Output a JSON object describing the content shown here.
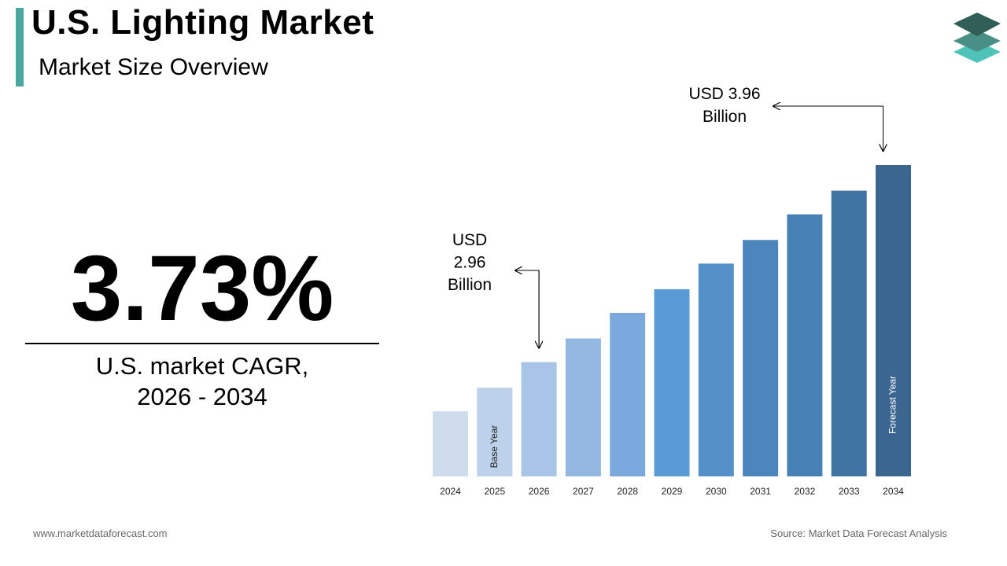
{
  "header": {
    "title": "U.S. Lighting Market",
    "subtitle": "Market Size Overview"
  },
  "kpi": {
    "value": "3.73%",
    "caption_line1": "U.S. market CAGR,",
    "caption_line2": "2026 - 2034"
  },
  "footer": {
    "website": "www.marketdataforecast.com",
    "source": "Source: Market Data Forecast Analysis"
  },
  "colors": {
    "accent": "#4aa89f",
    "logo_dark": "#2f5f57",
    "logo_mid": "#4a8f86",
    "logo_light": "#4fc3b8"
  },
  "logo_icon": "layers-stack-icon",
  "chart_data": {
    "type": "bar",
    "categories": [
      "2024",
      "2025",
      "2026",
      "2027",
      "2028",
      "2029",
      "2030",
      "2031",
      "2032",
      "2033",
      "2034"
    ],
    "values": [
      2.71,
      2.83,
      2.96,
      3.08,
      3.21,
      3.33,
      3.46,
      3.58,
      3.71,
      3.83,
      3.96
    ],
    "bar_colors": [
      "#cfdcec",
      "#bdd1ea",
      "#a8c4e6",
      "#93b7e1",
      "#7ba9dd",
      "#5b9bd5",
      "#5590c8",
      "#4d86bd",
      "#4680b5",
      "#3f74a3",
      "#3b6690"
    ],
    "bar_labels": {
      "2025": "Base Year",
      "2034": "Forecast Year"
    },
    "annotations": [
      {
        "category": "2026",
        "lines": [
          "USD",
          "2.96",
          "Billion"
        ]
      },
      {
        "category": "2034",
        "lines": [
          "USD 3.96",
          "Billion"
        ]
      }
    ],
    "ylim": [
      2.38,
      4.0
    ],
    "grid": false
  }
}
